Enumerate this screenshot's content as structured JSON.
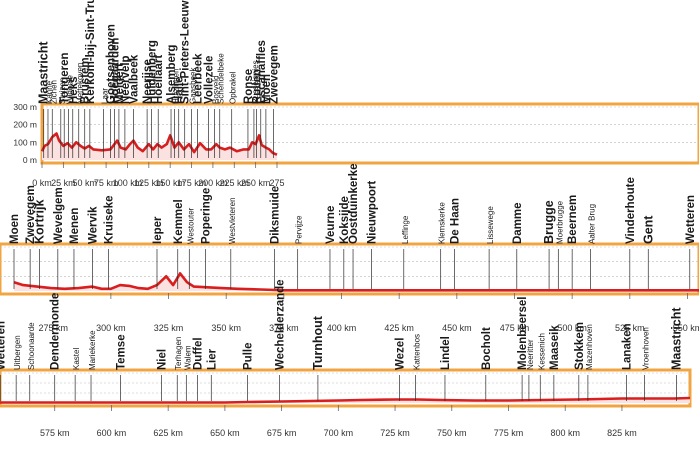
{
  "chart_data": {
    "type": "area",
    "xlabel": "",
    "ylabel": "",
    "colors": {
      "frame": "#f2a440",
      "fill": "#fbe1df",
      "line": "#d81e1e",
      "grid": "#bbbbbb"
    },
    "altitude_ticks": [
      "300 m",
      "200 m",
      "100 m",
      "0 m"
    ],
    "altitude_values": [
      300,
      200,
      100,
      0
    ],
    "panels": [
      {
        "xlim": [
          0,
          275
        ],
        "ylim": [
          0,
          300
        ],
        "x_ticks": [
          0,
          25,
          50,
          75,
          100,
          125,
          150,
          175,
          200,
          225,
          250,
          275
        ],
        "x_tick_labels": [
          "0 km",
          "25 km",
          "50 km",
          "75 km",
          "100 km",
          "125 km",
          "150 km",
          "175 km",
          "200 km",
          "225 km",
          "250 km",
          "275"
        ],
        "elevation": [
          [
            0,
            50
          ],
          [
            3,
            80
          ],
          [
            7,
            90
          ],
          [
            12,
            130
          ],
          [
            17,
            150
          ],
          [
            20,
            110
          ],
          [
            25,
            80
          ],
          [
            30,
            95
          ],
          [
            35,
            70
          ],
          [
            40,
            100
          ],
          [
            45,
            80
          ],
          [
            50,
            65
          ],
          [
            55,
            80
          ],
          [
            60,
            60
          ],
          [
            70,
            55
          ],
          [
            80,
            60
          ],
          [
            88,
            110
          ],
          [
            92,
            70
          ],
          [
            98,
            60
          ],
          [
            103,
            90
          ],
          [
            107,
            110
          ],
          [
            112,
            70
          ],
          [
            118,
            50
          ],
          [
            125,
            90
          ],
          [
            130,
            60
          ],
          [
            135,
            90
          ],
          [
            140,
            70
          ],
          [
            146,
            90
          ],
          [
            150,
            140
          ],
          [
            155,
            70
          ],
          [
            160,
            100
          ],
          [
            166,
            60
          ],
          [
            172,
            90
          ],
          [
            178,
            45
          ],
          [
            185,
            95
          ],
          [
            192,
            60
          ],
          [
            198,
            60
          ],
          [
            204,
            90
          ],
          [
            208,
            70
          ],
          [
            214,
            60
          ],
          [
            220,
            70
          ],
          [
            228,
            50
          ],
          [
            236,
            60
          ],
          [
            242,
            60
          ],
          [
            246,
            100
          ],
          [
            250,
            90
          ],
          [
            254,
            140
          ],
          [
            257,
            85
          ],
          [
            262,
            70
          ],
          [
            266,
            60
          ],
          [
            270,
            40
          ],
          [
            275,
            30
          ]
        ],
        "towns": [
          {
            "name": "Maastricht",
            "km": 2,
            "class": "capital"
          },
          {
            "name": "Kanne",
            "km": 7,
            "class": "minor"
          },
          {
            "name": "Zichen",
            "km": 12,
            "class": "minor"
          },
          {
            "name": "Sluizen",
            "km": 22,
            "class": "minor"
          },
          {
            "name": "Tongeren",
            "km": 26,
            "class": "major"
          },
          {
            "name": "Widooie",
            "km": 31,
            "class": "minor"
          },
          {
            "name": "Heks",
            "km": 36,
            "class": "major"
          },
          {
            "name": "Mettekoven",
            "km": 43,
            "class": "minor"
          },
          {
            "name": "Brustem",
            "km": 50,
            "class": "major"
          },
          {
            "name": "Kerkom-bij-Sint-Truiden",
            "km": 56,
            "class": "major"
          },
          {
            "name": "Laar",
            "km": 72,
            "class": "minor"
          },
          {
            "name": "Goetsenhoven",
            "km": 80,
            "class": "major"
          },
          {
            "name": "Hoegaarden",
            "km": 85,
            "class": "major"
          },
          {
            "name": "Meldert",
            "km": 90,
            "class": "major"
          },
          {
            "name": "Neervelp",
            "km": 97,
            "class": "major"
          },
          {
            "name": "Vaalbeek",
            "km": 107,
            "class": "major"
          },
          {
            "name": "Neerijse",
            "km": 123,
            "class": "major"
          },
          {
            "name": "Huldenberg",
            "km": 128,
            "class": "major"
          },
          {
            "name": "Hoeilaart",
            "km": 136,
            "class": "major"
          },
          {
            "name": "Alsemberg",
            "km": 151,
            "class": "major"
          },
          {
            "name": "Huizingen",
            "km": 155,
            "class": "minor"
          },
          {
            "name": "Halle",
            "km": 160,
            "class": "major"
          },
          {
            "name": "Sint-Pieters-Leeuw",
            "km": 167,
            "class": "major"
          },
          {
            "name": "Gaasbeek",
            "km": 175,
            "class": "minor"
          },
          {
            "name": "Leerbeek",
            "km": 182,
            "class": "major"
          },
          {
            "name": "Vollezele",
            "km": 195,
            "class": "major"
          },
          {
            "name": "Bosveld",
            "km": 202,
            "class": "minor"
          },
          {
            "name": "Schendelbeke",
            "km": 208,
            "class": "minor"
          },
          {
            "name": "Opbrakel",
            "km": 222,
            "class": "minor"
          },
          {
            "name": "Ronse",
            "km": 241,
            "class": "major"
          },
          {
            "name": "Russeignies",
            "km": 248,
            "class": "minor"
          },
          {
            "name": "Rullen",
            "km": 251,
            "class": "major"
          },
          {
            "name": "Escanaffles",
            "km": 256,
            "class": "major"
          },
          {
            "name": "Moen",
            "km": 262,
            "class": "major"
          },
          {
            "name": "Zwevegem",
            "km": 271,
            "class": "major"
          }
        ]
      },
      {
        "xlim": [
          258,
          555
        ],
        "ylim": [
          0,
          300
        ],
        "x_ticks": [
          275,
          300,
          325,
          350,
          375,
          400,
          425,
          450,
          475,
          500,
          525,
          550
        ],
        "x_tick_labels": [
          "275 km",
          "300 km",
          "325 km",
          "350 km",
          "375 km",
          "400 km",
          "425 km",
          "450 km",
          "475 km",
          "500 km",
          "525 km",
          "550 km"
        ],
        "elevation": [
          [
            258,
            60
          ],
          [
            262,
            40
          ],
          [
            268,
            30
          ],
          [
            274,
            20
          ],
          [
            280,
            15
          ],
          [
            286,
            20
          ],
          [
            292,
            30
          ],
          [
            296,
            15
          ],
          [
            300,
            15
          ],
          [
            304,
            40
          ],
          [
            308,
            35
          ],
          [
            312,
            20
          ],
          [
            316,
            15
          ],
          [
            320,
            40
          ],
          [
            324,
            100
          ],
          [
            327,
            40
          ],
          [
            330,
            120
          ],
          [
            333,
            60
          ],
          [
            336,
            30
          ],
          [
            342,
            25
          ],
          [
            348,
            20
          ],
          [
            355,
            15
          ],
          [
            365,
            10
          ],
          [
            375,
            5
          ],
          [
            385,
            5
          ],
          [
            400,
            5
          ],
          [
            415,
            5
          ],
          [
            430,
            5
          ],
          [
            445,
            5
          ],
          [
            460,
            5
          ],
          [
            475,
            5
          ],
          [
            490,
            5
          ],
          [
            505,
            5
          ],
          [
            520,
            5
          ],
          [
            535,
            5
          ],
          [
            555,
            5
          ]
        ],
        "towns": [
          {
            "name": "Moen",
            "km": 258,
            "class": "major"
          },
          {
            "name": "Zwevegem",
            "km": 265,
            "class": "major"
          },
          {
            "name": "Kortrijk",
            "km": 269,
            "class": "capital"
          },
          {
            "name": "Wevelgem",
            "km": 277,
            "class": "major"
          },
          {
            "name": "Menen",
            "km": 284,
            "class": "major"
          },
          {
            "name": "Wervik",
            "km": 292,
            "class": "major"
          },
          {
            "name": "Kruiseke",
            "km": 299,
            "class": "major"
          },
          {
            "name": "Ieper",
            "km": 320,
            "class": "major"
          },
          {
            "name": "Kemmel",
            "km": 329,
            "class": "major"
          },
          {
            "name": "Westouter",
            "km": 334,
            "class": "minor"
          },
          {
            "name": "Poperinge",
            "km": 341,
            "class": "major"
          },
          {
            "name": "Westvleteren",
            "km": 352,
            "class": "minor"
          },
          {
            "name": "Diksmuide",
            "km": 371,
            "class": "major"
          },
          {
            "name": "Pervijze",
            "km": 381,
            "class": "minor"
          },
          {
            "name": "Veurne",
            "km": 395,
            "class": "major"
          },
          {
            "name": "Koksijde",
            "km": 401,
            "class": "major"
          },
          {
            "name": "Oostduinkerke",
            "km": 405,
            "class": "major"
          },
          {
            "name": "Nieuwpoort",
            "km": 413,
            "class": "major"
          },
          {
            "name": "Leffinge",
            "km": 427,
            "class": "minor"
          },
          {
            "name": "Klemskerke",
            "km": 443,
            "class": "minor"
          },
          {
            "name": "De Haan",
            "km": 449,
            "class": "major"
          },
          {
            "name": "Lissewege",
            "km": 464,
            "class": "minor"
          },
          {
            "name": "Damme",
            "km": 476,
            "class": "major"
          },
          {
            "name": "Brugge",
            "km": 490,
            "class": "capital"
          },
          {
            "name": "Moerbrugge",
            "km": 494,
            "class": "minor"
          },
          {
            "name": "Beernem",
            "km": 500,
            "class": "major"
          },
          {
            "name": "Aalter Brug",
            "km": 508,
            "class": "minor"
          },
          {
            "name": "Vinderhoute",
            "km": 525,
            "class": "major"
          },
          {
            "name": "Gent",
            "km": 533,
            "class": "capital"
          },
          {
            "name": "Wetteren",
            "km": 551,
            "class": "major"
          }
        ]
      },
      {
        "xlim": [
          550,
          855
        ],
        "ylim": [
          0,
          300
        ],
        "x_ticks": [
          575,
          600,
          625,
          650,
          675,
          700,
          725,
          750,
          775,
          800,
          825
        ],
        "x_tick_labels": [
          "575 km",
          "600 km",
          "625 km",
          "650 km",
          "675 km",
          "700 km",
          "725 km",
          "750 km",
          "775 km",
          "800 km",
          "825 km"
        ],
        "elevation": [
          [
            550,
            5
          ],
          [
            575,
            5
          ],
          [
            600,
            5
          ],
          [
            625,
            5
          ],
          [
            650,
            5
          ],
          [
            660,
            10
          ],
          [
            675,
            15
          ],
          [
            700,
            25
          ],
          [
            710,
            30
          ],
          [
            725,
            35
          ],
          [
            735,
            35
          ],
          [
            745,
            30
          ],
          [
            760,
            25
          ],
          [
            775,
            25
          ],
          [
            790,
            30
          ],
          [
            805,
            35
          ],
          [
            815,
            40
          ],
          [
            825,
            45
          ],
          [
            835,
            45
          ],
          [
            842,
            45
          ],
          [
            848,
            45
          ],
          [
            855,
            50
          ]
        ],
        "towns": [
          {
            "name": "Wetteren",
            "km": 551,
            "class": "major"
          },
          {
            "name": "Uitbergen",
            "km": 558,
            "class": "minor"
          },
          {
            "name": "Schoonaarde",
            "km": 564,
            "class": "minor"
          },
          {
            "name": "Dendermonde",
            "km": 575,
            "class": "major"
          },
          {
            "name": "Kastel",
            "km": 584,
            "class": "minor"
          },
          {
            "name": "Mariekerke",
            "km": 591,
            "class": "minor"
          },
          {
            "name": "Temse",
            "km": 604,
            "class": "major"
          },
          {
            "name": "Niel",
            "km": 622,
            "class": "major"
          },
          {
            "name": "Terhagen",
            "km": 629,
            "class": "minor"
          },
          {
            "name": "Walem",
            "km": 633,
            "class": "minor"
          },
          {
            "name": "Duffel",
            "km": 638,
            "class": "major"
          },
          {
            "name": "Lier",
            "km": 644,
            "class": "major"
          },
          {
            "name": "Pulle",
            "km": 660,
            "class": "major"
          },
          {
            "name": "Wechelderzande",
            "km": 674,
            "class": "major"
          },
          {
            "name": "Turnhout",
            "km": 691,
            "class": "capital"
          },
          {
            "name": "Wezel",
            "km": 727,
            "class": "major"
          },
          {
            "name": "Kattenbos",
            "km": 734,
            "class": "minor"
          },
          {
            "name": "Lindel",
            "km": 747,
            "class": "major"
          },
          {
            "name": "Bocholt",
            "km": 765,
            "class": "major"
          },
          {
            "name": "Molenbeersel",
            "km": 781,
            "class": "major"
          },
          {
            "name": "Neeritter",
            "km": 784,
            "class": "minor"
          },
          {
            "name": "Kessenich",
            "km": 789,
            "class": "minor"
          },
          {
            "name": "Maaseik",
            "km": 795,
            "class": "major"
          },
          {
            "name": "Stokkem",
            "km": 806,
            "class": "major"
          },
          {
            "name": "Mazenhoven",
            "km": 810,
            "class": "minor"
          },
          {
            "name": "Lanaken",
            "km": 827,
            "class": "major"
          },
          {
            "name": "Vroenhoven",
            "km": 835,
            "class": "minor"
          },
          {
            "name": "Maastricht",
            "km": 849,
            "class": "capital"
          }
        ]
      }
    ]
  }
}
